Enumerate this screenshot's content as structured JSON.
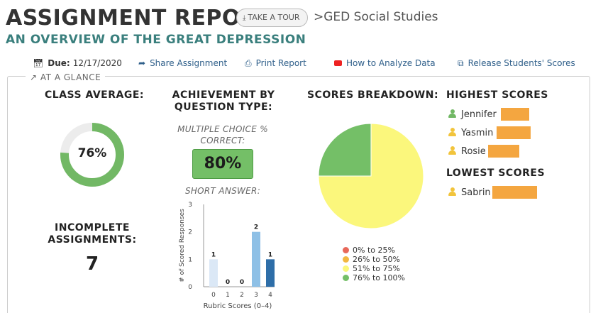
{
  "header": {
    "title": "ASSIGNMENT REPORT",
    "tour_button": "TAKE A TOUR",
    "course": ">GED Social Studies",
    "subtitle": "AN OVERVIEW OF THE GREAT DEPRESSION"
  },
  "actions": {
    "due_label": "Due:",
    "due_date": "12/17/2020",
    "share": "Share Assignment",
    "print": "Print Report",
    "analyze": "How to Analyze Data",
    "release": "Release Students' Scores"
  },
  "glance": {
    "label": "AT A GLANCE"
  },
  "class_average": {
    "heading": "CLASS AVERAGE:",
    "value": "76%",
    "fraction": 0.76
  },
  "achievement": {
    "heading_line1": "ACHIEVEMENT BY",
    "heading_line2": "QUESTION TYPE:",
    "mc_label": "MULTIPLE CHOICE % CORRECT:",
    "mc_value": "80%",
    "sa_label": "SHORT ANSWER:"
  },
  "incomplete": {
    "heading_line1": "INCOMPLETE",
    "heading_line2": "ASSIGNMENTS:",
    "value": "7"
  },
  "scores_breakdown": {
    "heading": "SCORES BREAKDOWN:"
  },
  "highest": {
    "heading": "HIGHEST SCORES",
    "students": [
      {
        "name": "Jennifer",
        "icon_color": "#72b865"
      },
      {
        "name": "Yasmin",
        "icon_color": "#f2c43c"
      },
      {
        "name": "Rosie",
        "icon_color": "#f2c43c"
      }
    ]
  },
  "lowest": {
    "heading": "LOWEST SCORES",
    "students": [
      {
        "name": "Sabrin",
        "icon_color": "#f2c43c"
      }
    ]
  },
  "chart_data": [
    {
      "type": "bar",
      "categories": [
        "0",
        "1",
        "2",
        "3",
        "4"
      ],
      "values": [
        1,
        0,
        0,
        2,
        1
      ],
      "data_labels": [
        "1",
        "0",
        "0",
        "2",
        "1"
      ],
      "xlabel": "Rubric Scores (0–4)",
      "ylabel": "# of Scored Responses",
      "ylim": [
        0,
        3
      ],
      "yticks": [
        "0",
        "1",
        "2",
        "3"
      ],
      "colors": [
        "#dbe8f6",
        "#c7dcf1",
        "#b3d0ec",
        "#8ec0e6",
        "#2e6ea8"
      ],
      "grid": false
    },
    {
      "type": "pie",
      "categories": [
        "0% to 25%",
        "26% to 50%",
        "51% to 75%",
        "76% to 100%"
      ],
      "values": [
        0,
        0,
        75,
        25
      ],
      "colors": [
        "#e8685a",
        "#f2b740",
        "#fbf77c",
        "#74bf67"
      ],
      "legend_position": "bottom"
    }
  ]
}
